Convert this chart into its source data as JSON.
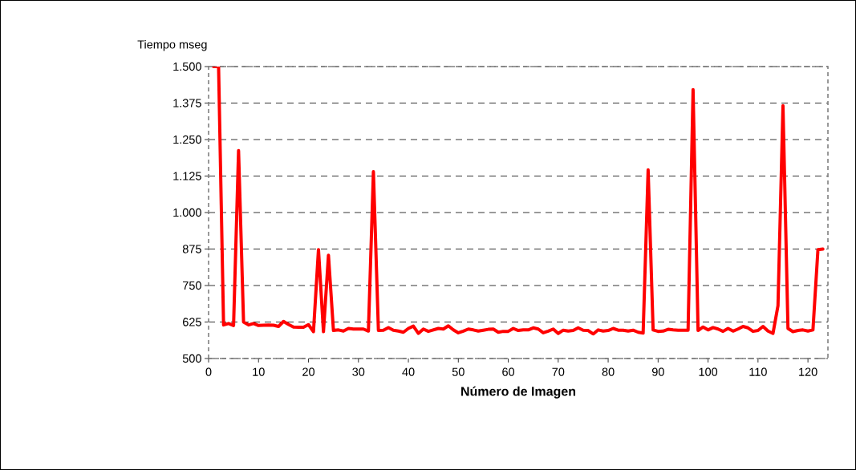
{
  "chart_data": {
    "type": "line",
    "xlabel": "Número de Imagen",
    "ylabel": "Tiempo mseg",
    "color": "#ff0000",
    "line_style": "solid",
    "grid": "y",
    "xlim": [
      0,
      124
    ],
    "ylim": [
      500,
      1500
    ],
    "xticks": [
      0,
      10,
      20,
      30,
      40,
      50,
      60,
      70,
      80,
      90,
      100,
      110,
      120
    ],
    "yticks": [
      500,
      625,
      750,
      875,
      {
        "value": 1000,
        "label": "1.000"
      },
      {
        "value": 1125,
        "label": "1.125"
      },
      {
        "value": 1250,
        "label": "1.250"
      },
      {
        "value": 1375,
        "label": "1.375"
      },
      {
        "value": 1500,
        "label": "1.500"
      }
    ],
    "x": [
      1,
      2,
      3,
      4,
      5,
      6,
      7,
      8,
      9,
      10,
      11,
      12,
      13,
      14,
      15,
      16,
      17,
      18,
      19,
      20,
      21,
      22,
      23,
      24,
      25,
      26,
      27,
      28,
      29,
      30,
      31,
      32,
      33,
      34,
      35,
      36,
      37,
      38,
      39,
      40,
      41,
      42,
      43,
      44,
      45,
      46,
      47,
      48,
      49,
      50,
      51,
      52,
      53,
      54,
      55,
      56,
      57,
      58,
      59,
      60,
      61,
      62,
      63,
      64,
      65,
      66,
      67,
      68,
      69,
      70,
      71,
      72,
      73,
      74,
      75,
      76,
      77,
      78,
      79,
      80,
      81,
      82,
      83,
      84,
      85,
      86,
      87,
      88,
      89,
      90,
      91,
      92,
      93,
      94,
      95,
      96,
      97,
      98,
      99,
      100,
      101,
      102,
      103,
      104,
      105,
      106,
      107,
      108,
      109,
      110,
      111,
      112,
      113,
      114,
      115,
      116,
      117,
      118,
      119,
      120,
      121,
      122,
      123
    ],
    "values": [
      1500,
      1500,
      615,
      620,
      613,
      1212,
      625,
      615,
      620,
      613,
      614,
      615,
      614,
      610,
      627,
      617,
      608,
      607,
      607,
      616,
      592,
      873,
      592,
      854,
      596,
      598,
      594,
      603,
      601,
      601,
      601,
      594,
      1140,
      596,
      597,
      606,
      597,
      594,
      590,
      603,
      611,
      586,
      601,
      593,
      598,
      603,
      601,
      612,
      598,
      588,
      594,
      601,
      598,
      594,
      597,
      600,
      601,
      590,
      593,
      593,
      603,
      596,
      598,
      598,
      605,
      601,
      588,
      594,
      601,
      586,
      597,
      594,
      596,
      605,
      597,
      596,
      584,
      598,
      594,
      596,
      603,
      597,
      597,
      594,
      597,
      590,
      587,
      1146,
      598,
      593,
      594,
      600,
      598,
      597,
      597,
      597,
      1421,
      596,
      608,
      598,
      606,
      601,
      593,
      603,
      594,
      601,
      610,
      605,
      593,
      596,
      610,
      594,
      586,
      681,
      1366,
      603,
      592,
      596,
      598,
      594,
      598,
      873,
      875
    ]
  }
}
